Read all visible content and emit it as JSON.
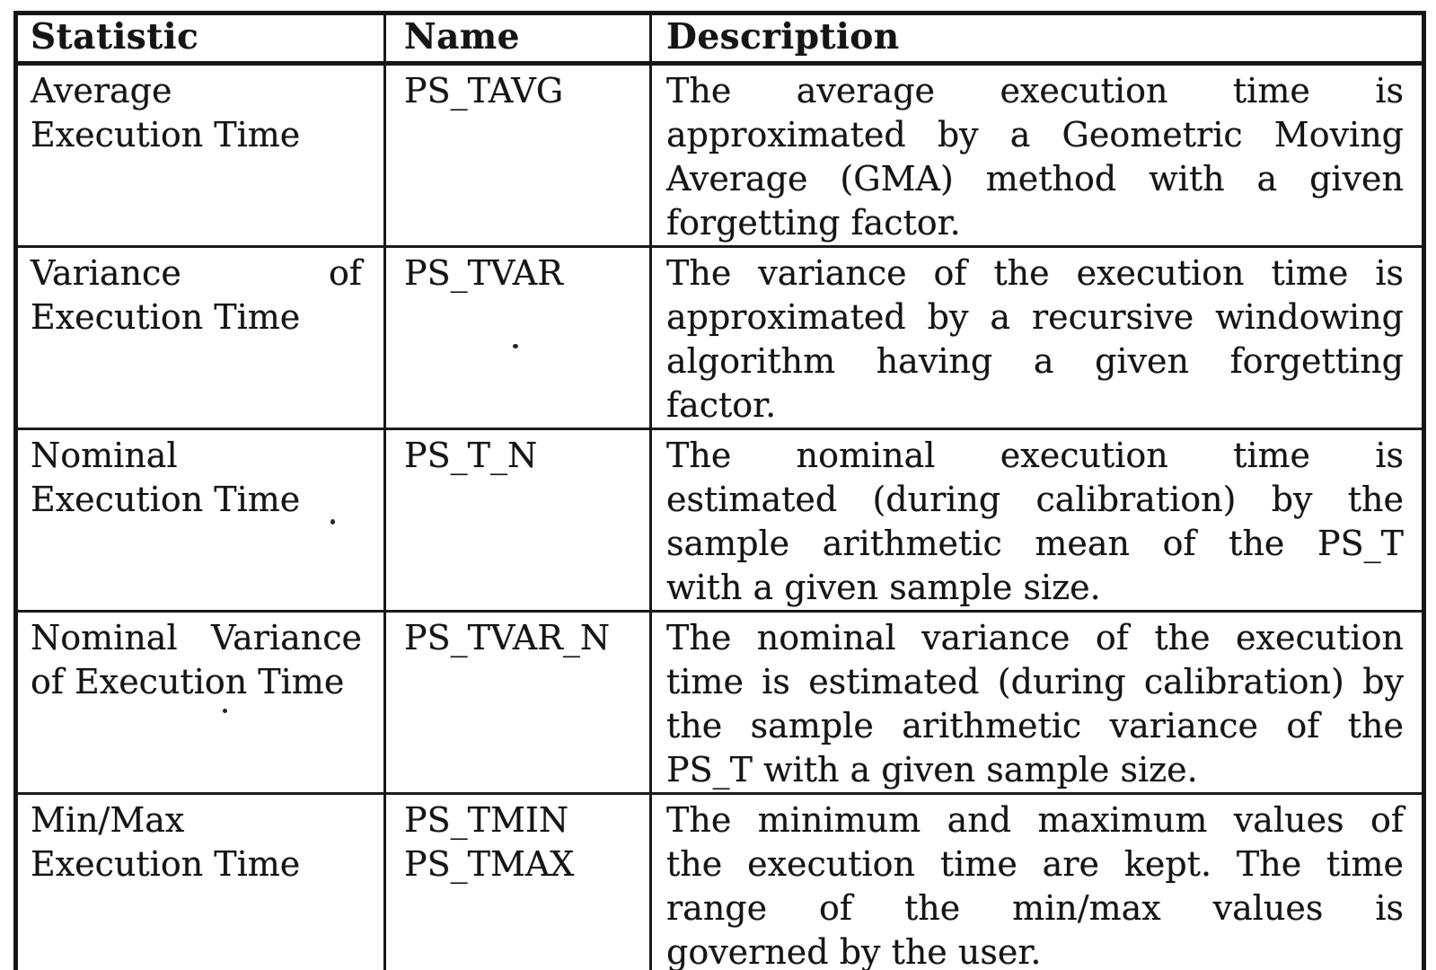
{
  "colors": {
    "ink": "#151515",
    "paper": "#ffffff",
    "border": "#1a1a1a"
  },
  "table": {
    "columns": [
      {
        "label": "Statistic"
      },
      {
        "label": "Name"
      },
      {
        "label": "Description"
      }
    ],
    "rows": [
      {
        "statistic": "Average Execution Time",
        "statistic_lines": [
          "Average",
          "Execution Time"
        ],
        "name_lines": [
          "PS_TAVG"
        ],
        "description": "The average execution time is approximated by a Geometric Moving Average (GMA) method with a given forgetting factor.",
        "description_lines": [
          "The average execution time is",
          "approximated by a Geometric Moving",
          "Average (GMA) method with a given",
          "forgetting factor."
        ]
      },
      {
        "statistic": "Variance of Execution Time",
        "statistic_lines": [
          "Variance of",
          "Execution Time"
        ],
        "name_lines": [
          "PS_TVAR"
        ],
        "description": "The variance of the execution time is approximated by a recursive windowing algorithm having a given forgetting factor.",
        "description_lines": [
          "The variance of the execution time is",
          "approximated by a recursive windowing",
          "algorithm having a given forgetting",
          "factor."
        ]
      },
      {
        "statistic": "Nominal Execution Time",
        "statistic_lines": [
          "Nominal",
          "Execution Time"
        ],
        "name_lines": [
          "PS_T_N"
        ],
        "description": "The nominal execution time is estimated (during calibration) by the sample arithmetic mean of the PS_T with a given sample size.",
        "description_lines": [
          "The nominal execution time is",
          "estimated (during calibration) by the",
          "sample arithmetic mean of the PS_T",
          "with a given sample size."
        ]
      },
      {
        "statistic": "Nominal Variance of Execution Time",
        "statistic_lines": [
          "Nominal Variance",
          "of Execution Time"
        ],
        "name_lines": [
          "PS_TVAR_N"
        ],
        "description": "The nominal variance of the execution time is estimated (during calibration) by the sample arithmetic variance of the PS_T with a given sample size.",
        "description_lines": [
          "The nominal variance of the execution",
          "time is estimated (during calibration) by",
          "the sample arithmetic variance of the",
          "PS_T with a given sample size."
        ]
      },
      {
        "statistic": "Min/Max Execution Time",
        "statistic_lines": [
          "Min/Max",
          "Execution Time"
        ],
        "name_lines": [
          "PS_TMIN",
          "PS_TMAX"
        ],
        "description": "The minimum and maximum values of the execution time are kept. The time range of the min/max values is governed by the user.",
        "description_lines": [
          "The minimum and maximum values of",
          "the execution time are kept. The time",
          "range of the min/max values is",
          "governed by the user."
        ]
      }
    ]
  }
}
